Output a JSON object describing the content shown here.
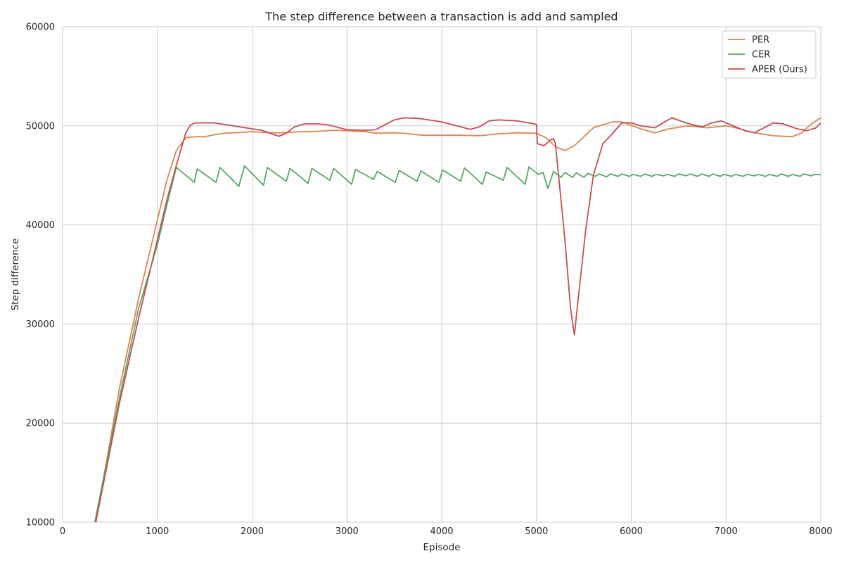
{
  "chart_data": {
    "type": "line",
    "title": "The step difference between a transaction is add and sampled",
    "xlabel": "Episode",
    "ylabel": "Step difference",
    "xlim": [
      0,
      8000
    ],
    "ylim": [
      10000,
      60000
    ],
    "xticks": [
      0,
      1000,
      2000,
      3000,
      4000,
      5000,
      6000,
      7000,
      8000
    ],
    "yticks": [
      10000,
      20000,
      30000,
      40000,
      50000,
      60000
    ],
    "grid": true,
    "legend_position": "top-right",
    "series": [
      {
        "name": "PER",
        "color": "#dd8452",
        "points": [
          [
            350,
            10000
          ],
          [
            600,
            23500
          ],
          [
            800,
            32500
          ],
          [
            1000,
            40500
          ],
          [
            1100,
            44500
          ],
          [
            1200,
            47500
          ],
          [
            1300,
            48800
          ],
          [
            1400,
            48900
          ],
          [
            1500,
            48900
          ],
          [
            1600,
            49100
          ],
          [
            1700,
            49250
          ],
          [
            1800,
            49300
          ],
          [
            1900,
            49350
          ],
          [
            2000,
            49400
          ],
          [
            2100,
            49350
          ],
          [
            2200,
            49300
          ],
          [
            2300,
            49300
          ],
          [
            2400,
            49350
          ],
          [
            2500,
            49400
          ],
          [
            2600,
            49400
          ],
          [
            2700,
            49450
          ],
          [
            2850,
            49550
          ],
          [
            3000,
            49500
          ],
          [
            3200,
            49400
          ],
          [
            3300,
            49250
          ],
          [
            3500,
            49300
          ],
          [
            3600,
            49250
          ],
          [
            3800,
            49050
          ],
          [
            4000,
            49050
          ],
          [
            4200,
            49050
          ],
          [
            4400,
            49000
          ],
          [
            4600,
            49200
          ],
          [
            4800,
            49300
          ],
          [
            5000,
            49250
          ],
          [
            5100,
            48800
          ],
          [
            5200,
            47900
          ],
          [
            5300,
            47500
          ],
          [
            5400,
            48000
          ],
          [
            5600,
            49800
          ],
          [
            5800,
            50400
          ],
          [
            5900,
            50400
          ],
          [
            6100,
            49700
          ],
          [
            6250,
            49300
          ],
          [
            6400,
            49700
          ],
          [
            6600,
            50000
          ],
          [
            6800,
            49800
          ],
          [
            7000,
            50000
          ],
          [
            7100,
            49800
          ],
          [
            7300,
            49300
          ],
          [
            7500,
            49000
          ],
          [
            7700,
            48900
          ],
          [
            7800,
            49300
          ],
          [
            7900,
            50200
          ],
          [
            8000,
            50800
          ]
        ]
      },
      {
        "name": "CER",
        "color": "#55a868",
        "points": [
          [
            340,
            10000
          ],
          [
            600,
            22500
          ],
          [
            800,
            31500
          ],
          [
            1000,
            38000
          ],
          [
            1100,
            42000
          ],
          [
            1200,
            45800
          ],
          [
            1390,
            44300
          ],
          [
            1420,
            45650
          ],
          [
            1620,
            44300
          ],
          [
            1660,
            45800
          ],
          [
            1860,
            43900
          ],
          [
            1920,
            45950
          ],
          [
            2120,
            44000
          ],
          [
            2160,
            45800
          ],
          [
            2360,
            44400
          ],
          [
            2400,
            45700
          ],
          [
            2590,
            44200
          ],
          [
            2630,
            45700
          ],
          [
            2820,
            44500
          ],
          [
            2860,
            45700
          ],
          [
            3050,
            44100
          ],
          [
            3090,
            45600
          ],
          [
            3280,
            44600
          ],
          [
            3320,
            45400
          ],
          [
            3510,
            44300
          ],
          [
            3550,
            45500
          ],
          [
            3740,
            44400
          ],
          [
            3780,
            45450
          ],
          [
            3970,
            44300
          ],
          [
            4010,
            45550
          ],
          [
            4200,
            44400
          ],
          [
            4240,
            45750
          ],
          [
            4430,
            44100
          ],
          [
            4470,
            45350
          ],
          [
            4650,
            44500
          ],
          [
            4690,
            45800
          ],
          [
            4880,
            44100
          ],
          [
            4920,
            45850
          ],
          [
            5020,
            45100
          ],
          [
            5070,
            45300
          ],
          [
            5120,
            43700
          ],
          [
            5180,
            45400
          ],
          [
            5260,
            44800
          ],
          [
            5300,
            45300
          ],
          [
            5380,
            44800
          ],
          [
            5420,
            45250
          ],
          [
            5500,
            44800
          ],
          [
            5540,
            45200
          ],
          [
            5620,
            44900
          ],
          [
            5660,
            45150
          ],
          [
            5740,
            44850
          ],
          [
            5780,
            45150
          ],
          [
            5860,
            44900
          ],
          [
            5900,
            45150
          ],
          [
            5980,
            44900
          ],
          [
            6020,
            45100
          ],
          [
            6100,
            44900
          ],
          [
            6140,
            45150
          ],
          [
            6220,
            44900
          ],
          [
            6260,
            45100
          ],
          [
            6340,
            44950
          ],
          [
            6380,
            45100
          ],
          [
            6460,
            44900
          ],
          [
            6500,
            45150
          ],
          [
            6580,
            44950
          ],
          [
            6620,
            45150
          ],
          [
            6700,
            44900
          ],
          [
            6740,
            45150
          ],
          [
            6820,
            44900
          ],
          [
            6860,
            45150
          ],
          [
            6940,
            44900
          ],
          [
            6980,
            45100
          ],
          [
            7060,
            44900
          ],
          [
            7100,
            45100
          ],
          [
            7180,
            44900
          ],
          [
            7220,
            45100
          ],
          [
            7300,
            44950
          ],
          [
            7340,
            45100
          ],
          [
            7420,
            44900
          ],
          [
            7460,
            45100
          ],
          [
            7540,
            44900
          ],
          [
            7580,
            45150
          ],
          [
            7660,
            44900
          ],
          [
            7700,
            45100
          ],
          [
            7780,
            44900
          ],
          [
            7820,
            45150
          ],
          [
            7900,
            44950
          ],
          [
            7940,
            45100
          ],
          [
            8000,
            45050
          ]
        ]
      },
      {
        "name": "APER (Ours)",
        "color": "#c44e52",
        "points": [
          [
            350,
            10000
          ],
          [
            600,
            22000
          ],
          [
            800,
            30500
          ],
          [
            1000,
            38500
          ],
          [
            1100,
            42500
          ],
          [
            1200,
            46000
          ],
          [
            1300,
            49300
          ],
          [
            1350,
            50100
          ],
          [
            1400,
            50300
          ],
          [
            1600,
            50300
          ],
          [
            1800,
            50000
          ],
          [
            2000,
            49700
          ],
          [
            2100,
            49550
          ],
          [
            2280,
            48950
          ],
          [
            2350,
            49200
          ],
          [
            2450,
            49900
          ],
          [
            2550,
            50200
          ],
          [
            2700,
            50200
          ],
          [
            2800,
            50100
          ],
          [
            2900,
            49850
          ],
          [
            3000,
            49600
          ],
          [
            3200,
            49550
          ],
          [
            3300,
            49600
          ],
          [
            3400,
            50100
          ],
          [
            3500,
            50600
          ],
          [
            3600,
            50800
          ],
          [
            3750,
            50750
          ],
          [
            3900,
            50550
          ],
          [
            4000,
            50400
          ],
          [
            4100,
            50150
          ],
          [
            4200,
            49900
          ],
          [
            4300,
            49650
          ],
          [
            4400,
            49900
          ],
          [
            4500,
            50500
          ],
          [
            4600,
            50600
          ],
          [
            4800,
            50500
          ],
          [
            5000,
            50150
          ],
          [
            5010,
            48200
          ],
          [
            5080,
            48000
          ],
          [
            5150,
            48600
          ],
          [
            5180,
            48700
          ],
          [
            5200,
            48200
          ],
          [
            5300,
            38500
          ],
          [
            5360,
            31500
          ],
          [
            5400,
            28900
          ],
          [
            5440,
            32500
          ],
          [
            5520,
            39500
          ],
          [
            5600,
            45000
          ],
          [
            5700,
            48200
          ],
          [
            5800,
            49200
          ],
          [
            5900,
            50300
          ],
          [
            6000,
            50300
          ],
          [
            6100,
            50000
          ],
          [
            6250,
            49800
          ],
          [
            6350,
            50400
          ],
          [
            6430,
            50800
          ],
          [
            6550,
            50400
          ],
          [
            6650,
            50100
          ],
          [
            6750,
            49900
          ],
          [
            6850,
            50300
          ],
          [
            6950,
            50500
          ],
          [
            7050,
            50100
          ],
          [
            7200,
            49500
          ],
          [
            7300,
            49300
          ],
          [
            7400,
            49800
          ],
          [
            7500,
            50300
          ],
          [
            7600,
            50200
          ],
          [
            7750,
            49700
          ],
          [
            7850,
            49500
          ],
          [
            7950,
            49800
          ],
          [
            8000,
            50300
          ]
        ]
      }
    ]
  }
}
